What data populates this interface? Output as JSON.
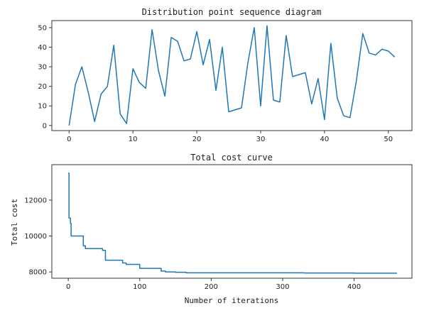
{
  "chart_data": [
    {
      "type": "line",
      "title": "Distribution point sequence diagram",
      "xlabel": "",
      "ylabel": "",
      "xlim": [
        -2.7,
        53.7
      ],
      "ylim": [
        -2.6,
        53.6
      ],
      "xticks": [
        0,
        10,
        20,
        30,
        40,
        50
      ],
      "yticks": [
        0,
        10,
        20,
        30,
        40,
        50
      ],
      "color": "#1f77b4",
      "x": [
        0,
        1,
        2,
        3,
        4,
        5,
        6,
        7,
        8,
        9,
        10,
        11,
        12,
        13,
        14,
        15,
        16,
        17,
        18,
        19,
        20,
        21,
        22,
        23,
        24,
        25,
        26,
        27,
        28,
        29,
        30,
        31,
        32,
        33,
        34,
        35,
        36,
        37,
        38,
        39,
        40,
        41,
        42,
        43,
        44,
        45,
        46,
        47,
        48,
        49,
        50,
        51
      ],
      "y": [
        0,
        21,
        30,
        17,
        2,
        16,
        20,
        41,
        6,
        1,
        29,
        22,
        19,
        49,
        28,
        15,
        45,
        43,
        33,
        34,
        48,
        31,
        44,
        18,
        40,
        7,
        8,
        9,
        32,
        50,
        10,
        51,
        13,
        12,
        46,
        25,
        26,
        27,
        11,
        24,
        3,
        42,
        14,
        5,
        4,
        23,
        47,
        37,
        36,
        39,
        38,
        35
      ]
    },
    {
      "type": "line",
      "title": "Total cost curve",
      "xlabel": "Number of iterations",
      "ylabel": "Total cost",
      "xlim": [
        -23,
        481
      ],
      "ylim": [
        7650,
        13970
      ],
      "xticks": [
        0,
        100,
        200,
        300,
        400
      ],
      "yticks": [
        8000,
        10000,
        12000
      ],
      "color": "#1f77b4",
      "steps": [
        [
          0,
          13500
        ],
        [
          1,
          11000
        ],
        [
          3,
          10700
        ],
        [
          4,
          10000
        ],
        [
          21,
          9450
        ],
        [
          24,
          9300
        ],
        [
          48,
          9200
        ],
        [
          52,
          8650
        ],
        [
          76,
          8500
        ],
        [
          81,
          8420
        ],
        [
          100,
          8200
        ],
        [
          130,
          8050
        ],
        [
          136,
          8000
        ],
        [
          150,
          7980
        ],
        [
          165,
          7950
        ],
        [
          330,
          7940
        ],
        [
          400,
          7930
        ],
        [
          460,
          7930
        ]
      ]
    }
  ]
}
